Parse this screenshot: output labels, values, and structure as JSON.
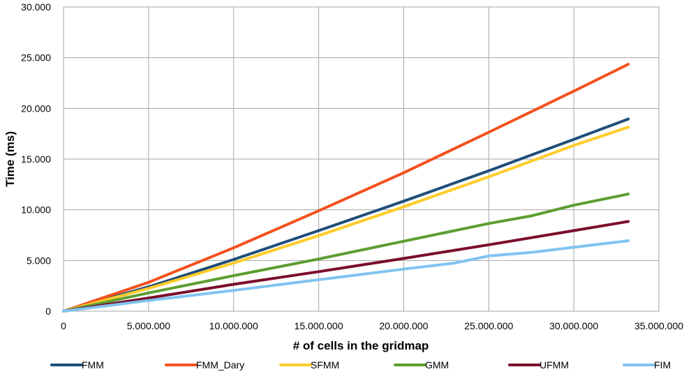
{
  "chart_data": {
    "type": "line",
    "title": "",
    "xlabel": "# of cells in the gridmap",
    "ylabel": "Time (ms)",
    "xlim": [
      0,
      35000000
    ],
    "ylim": [
      0,
      30000
    ],
    "x_ticks": [
      0,
      5000000,
      10000000,
      15000000,
      20000000,
      25000000,
      30000000,
      35000000
    ],
    "x_tick_labels": [
      "0",
      "5.000.000",
      "10.000.000",
      "15.000.000",
      "20.000.000",
      "25.000.000",
      "30.000.000",
      "35.000.000"
    ],
    "y_ticks": [
      0,
      5000,
      10000,
      15000,
      20000,
      25000,
      30000
    ],
    "y_tick_labels": [
      "0",
      "5.000",
      "10.000",
      "15.000",
      "20.000",
      "25.000",
      "30.000"
    ],
    "grid": true,
    "legend_position": "bottom",
    "series": [
      {
        "name": "FMM",
        "color": "#1F4E79",
        "x": [
          0,
          5000000,
          10000000,
          15000000,
          20000000,
          25000000,
          30000000,
          33200000
        ],
        "y": [
          0,
          2400,
          5100,
          7950,
          10850,
          13850,
          16950,
          18950
        ]
      },
      {
        "name": "FMM_Dary",
        "color": "#F4511E",
        "x": [
          0,
          5000000,
          10000000,
          15000000,
          20000000,
          25000000,
          30000000,
          33200000
        ],
        "y": [
          0,
          2850,
          6250,
          9900,
          13650,
          17650,
          21700,
          24350
        ]
      },
      {
        "name": "SFMM",
        "color": "#FFCC29",
        "x": [
          0,
          5000000,
          10000000,
          15000000,
          20000000,
          25000000,
          30000000,
          33200000
        ],
        "y": [
          0,
          2250,
          4750,
          7450,
          10300,
          13250,
          16350,
          18150
        ]
      },
      {
        "name": "GMM",
        "color": "#5C9E31",
        "x": [
          0,
          5000000,
          10000000,
          15000000,
          20000000,
          25000000,
          27500000,
          30000000,
          33200000
        ],
        "y": [
          0,
          1800,
          3500,
          5150,
          6900,
          8650,
          9400,
          10450,
          11550
        ]
      },
      {
        "name": "UFMM",
        "color": "#7B0E2B",
        "x": [
          0,
          5000000,
          10000000,
          15000000,
          20000000,
          25000000,
          30000000,
          33200000
        ],
        "y": [
          0,
          1300,
          2650,
          3900,
          5200,
          6550,
          7950,
          8850
        ]
      },
      {
        "name": "FIM",
        "color": "#80C4F1",
        "x": [
          0,
          5000000,
          10000000,
          15000000,
          20000000,
          23000000,
          25000000,
          27500000,
          30000000,
          33200000
        ],
        "y": [
          0,
          1050,
          2050,
          3100,
          4150,
          4750,
          5450,
          5800,
          6300,
          6950
        ]
      }
    ]
  }
}
